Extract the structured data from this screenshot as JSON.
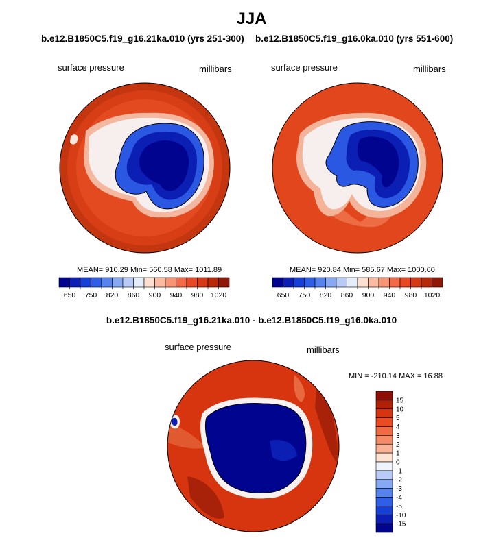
{
  "page_title": "JJA",
  "panels": [
    {
      "title": "b.e12.B1850C5.f19_g16.21ka.010 (yrs 251-300)",
      "left_label": "surface pressure",
      "right_label": "millibars",
      "stats": "MEAN= 910.29  Min= 560.58  Max= 1011.89"
    },
    {
      "title": "b.e12.B1850C5.f19_g16.0ka.010 (yrs 551-600)",
      "left_label": "surface pressure",
      "right_label": "millibars",
      "stats": "MEAN= 920.84  Min= 585.67  Max= 1000.60"
    }
  ],
  "diff_panel": {
    "title": "b.e12.B1850C5.f19_g16.21ka.010 - b.e12.B1850C5.f19_g16.0ka.010",
    "left_label": "surface pressure",
    "right_label": "millibars",
    "stats": "MIN = -210.14 MAX =  16.88"
  },
  "chart_data": [
    {
      "type": "contour-map",
      "title": "b.e12.B1850C5.f19_g16.21ka.010 (yrs 251-300)",
      "variable": "surface pressure",
      "units": "millibars",
      "mean": 910.29,
      "min": 560.58,
      "max": 1011.89,
      "colorbar_levels": [
        650,
        700,
        750,
        800,
        820,
        840,
        860,
        880,
        900,
        920,
        940,
        960,
        980,
        1000,
        1020
      ],
      "colorbar_tick_labels": [
        "650",
        "750",
        "820",
        "860",
        "900",
        "940",
        "980",
        "1020"
      ],
      "colorbar_colors": [
        "#01048f",
        "#0b1fb4",
        "#1740d6",
        "#2f5fe6",
        "#5683ee",
        "#87a8f3",
        "#b8cbf6",
        "#e6eefb",
        "#fde0d0",
        "#fbbba0",
        "#f79473",
        "#f26a47",
        "#e94825",
        "#d63a14",
        "#b62a0a",
        "#8f1806"
      ]
    },
    {
      "type": "contour-map",
      "title": "b.e12.B1850C5.f19_g16.0ka.010 (yrs 551-600)",
      "variable": "surface pressure",
      "units": "millibars",
      "mean": 920.84,
      "min": 585.67,
      "max": 1000.6,
      "colorbar_levels": [
        650,
        700,
        750,
        800,
        820,
        840,
        860,
        880,
        900,
        920,
        940,
        960,
        980,
        1000,
        1020
      ],
      "colorbar_tick_labels": [
        "650",
        "750",
        "820",
        "860",
        "900",
        "940",
        "980",
        "1020"
      ],
      "colorbar_colors": [
        "#01048f",
        "#0b1fb4",
        "#1740d6",
        "#2f5fe6",
        "#5683ee",
        "#87a8f3",
        "#b8cbf6",
        "#e6eefb",
        "#fde0d0",
        "#fbbba0",
        "#f79473",
        "#f26a47",
        "#e94825",
        "#d63a14",
        "#b62a0a",
        "#8f1806"
      ]
    },
    {
      "type": "contour-map",
      "title": "b.e12.B1850C5.f19_g16.21ka.010 - b.e12.B1850C5.f19_g16.0ka.010",
      "variable": "surface pressure",
      "units": "millibars",
      "min": -210.14,
      "max": 16.88,
      "colorbar_tick_labels": [
        "15",
        "10",
        "5",
        "4",
        "3",
        "2",
        "1",
        "0",
        "-1",
        "-2",
        "-3",
        "-4",
        "-5",
        "-10",
        "-15"
      ],
      "colorbar_colors": [
        "#8f0f05",
        "#b02208",
        "#d6350f",
        "#e94b22",
        "#f06a42",
        "#f48b66",
        "#f9b295",
        "#fde2d2",
        "#eef3fb",
        "#b8cbf6",
        "#87a8f3",
        "#5683ee",
        "#2f5fe6",
        "#1740d6",
        "#0b1fb4",
        "#01048f"
      ]
    }
  ],
  "colors": {
    "ocean_high": "#e0481f",
    "ocean_dark": "#c9380e",
    "ice_deep": "#01048f",
    "land_edge": "#f7f0ee"
  }
}
